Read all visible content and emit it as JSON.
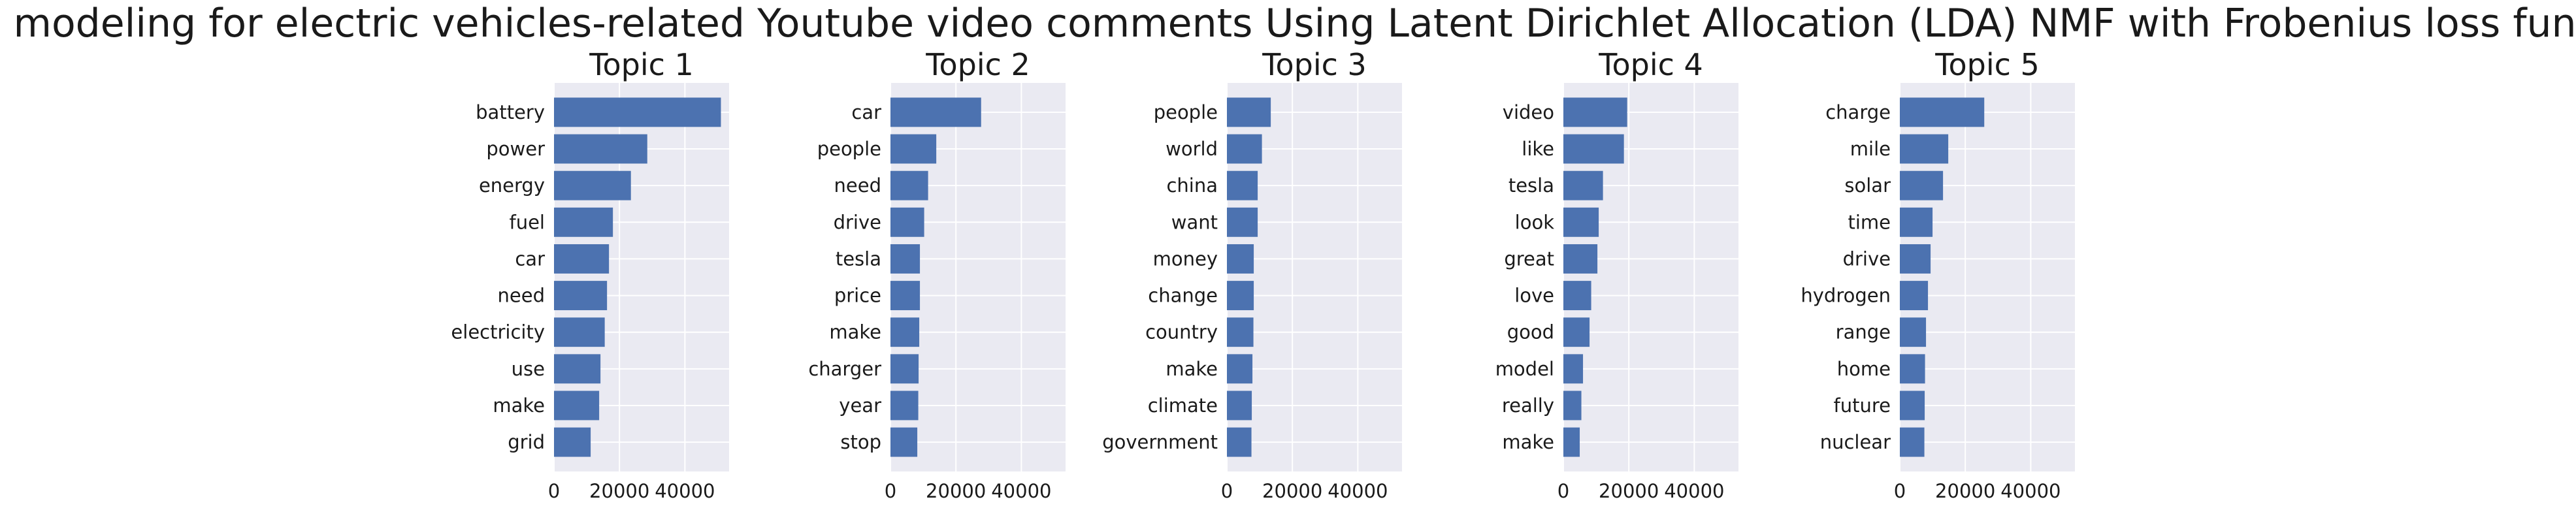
{
  "figure": {
    "title": "Topic modeling for electric vehicles-related Youtube video comments Using Latent Dirichlet Allocation (LDA) NMF with Frobenius loss function"
  },
  "style": {
    "bar_color": "#4C72B0",
    "axes_background": "#EAEAF2",
    "grid_color": "#FFFFFF"
  },
  "chart_data": [
    {
      "type": "bar",
      "orientation": "horizontal",
      "title": "Topic 1",
      "categories": [
        "battery",
        "power",
        "energy",
        "fuel",
        "car",
        "need",
        "electricity",
        "use",
        "make",
        "grid"
      ],
      "values": [
        51000,
        28500,
        23500,
        18000,
        16800,
        16200,
        15500,
        14200,
        13800,
        11200
      ],
      "xlim": [
        0,
        53500
      ],
      "xticks": [
        0,
        20000,
        40000
      ],
      "grid": true
    },
    {
      "type": "bar",
      "orientation": "horizontal",
      "title": "Topic 2",
      "categories": [
        "car",
        "people",
        "need",
        "drive",
        "tesla",
        "price",
        "make",
        "charger",
        "year",
        "stop"
      ],
      "values": [
        27700,
        14000,
        11500,
        10300,
        9000,
        9000,
        8800,
        8600,
        8500,
        8200
      ],
      "xlim": [
        0,
        53500
      ],
      "xticks": [
        0,
        20000,
        40000
      ],
      "grid": true
    },
    {
      "type": "bar",
      "orientation": "horizontal",
      "title": "Topic 3",
      "categories": [
        "people",
        "world",
        "china",
        "want",
        "money",
        "change",
        "country",
        "make",
        "climate",
        "government"
      ],
      "values": [
        13400,
        10700,
        9400,
        9400,
        8200,
        8200,
        8100,
        7800,
        7600,
        7500
      ],
      "xlim": [
        0,
        53500
      ],
      "xticks": [
        0,
        20000,
        40000
      ],
      "grid": true
    },
    {
      "type": "bar",
      "orientation": "horizontal",
      "title": "Topic 4",
      "categories": [
        "video",
        "like",
        "tesla",
        "look",
        "great",
        "love",
        "good",
        "model",
        "really",
        "make"
      ],
      "values": [
        19500,
        18500,
        12100,
        10800,
        10400,
        8500,
        8000,
        6000,
        5500,
        5000
      ],
      "xlim": [
        0,
        53500
      ],
      "xticks": [
        0,
        20000,
        40000
      ],
      "grid": true
    },
    {
      "type": "bar",
      "orientation": "horizontal",
      "title": "Topic 5",
      "categories": [
        "charge",
        "mile",
        "solar",
        "time",
        "drive",
        "hydrogen",
        "range",
        "home",
        "future",
        "nuclear"
      ],
      "values": [
        25800,
        14800,
        13200,
        10000,
        9400,
        8600,
        8000,
        7700,
        7600,
        7500
      ],
      "xlim": [
        0,
        53500
      ],
      "xticks": [
        0,
        20000,
        40000
      ],
      "grid": true
    }
  ]
}
